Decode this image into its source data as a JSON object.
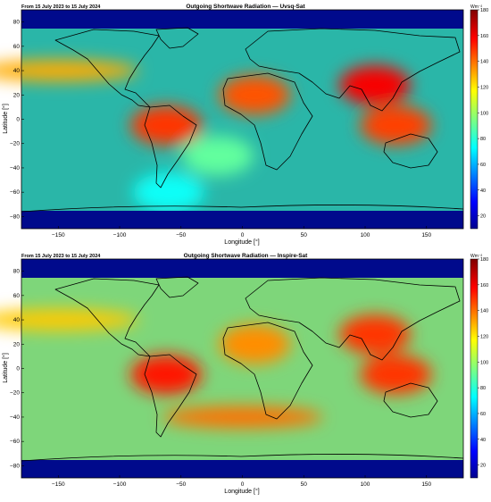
{
  "panels": [
    {
      "date_range": "From 15 July 2023 to 15 July 2024",
      "title": "Outgoing Shortwave Radiation — Uvsq-Sat",
      "xlabel": "Longitude [°]",
      "ylabel": "Latitude [°]",
      "x_ticks": [
        "−150",
        "−100",
        "−50",
        "0",
        "50",
        "100",
        "150"
      ],
      "y_ticks": [
        "80",
        "60",
        "40",
        "20",
        "0",
        "−20",
        "−40",
        "−60",
        "−80"
      ],
      "colorbar_unit": "Wm⁻²",
      "colorbar_ticks": [
        "180",
        "160",
        "140",
        "120",
        "100",
        "80",
        "60",
        "40",
        "20"
      ]
    },
    {
      "date_range": "From 15 July 2023 to 15 July 2024",
      "title": "Outgoing Shortwave Radiation — Inspire-Sat",
      "xlabel": "Longitude [°]",
      "ylabel": "Latitude [°]",
      "x_ticks": [
        "−150",
        "−100",
        "−50",
        "0",
        "50",
        "100",
        "150"
      ],
      "y_ticks": [
        "80",
        "60",
        "40",
        "20",
        "0",
        "−20",
        "−40",
        "−60",
        "−80"
      ],
      "colorbar_unit": "Wm⁻²",
      "colorbar_ticks": [
        "180",
        "160",
        "140",
        "120",
        "100",
        "80",
        "60",
        "40",
        "20"
      ]
    }
  ],
  "chart_data": [
    {
      "type": "heatmap",
      "projection": "equirectangular",
      "x_range": [
        -180,
        180
      ],
      "y_range": [
        -90,
        90
      ],
      "colorscale": "jet",
      "color_range": [
        10,
        180
      ],
      "features": [
        {
          "name": "arctic-low",
          "lon": 0,
          "lat": 85,
          "value": 15
        },
        {
          "name": "antarctic-low",
          "lon": 0,
          "lat": -85,
          "value": 15
        },
        {
          "name": "sahara-high",
          "lon": 10,
          "lat": 20,
          "value": 145
        },
        {
          "name": "east-asia-high",
          "lon": 108,
          "lat": 28,
          "value": 160
        },
        {
          "name": "amazon-high",
          "lon": -62,
          "lat": -5,
          "value": 150
        },
        {
          "name": "maritime-continent-high",
          "lon": 125,
          "lat": -5,
          "value": 148
        },
        {
          "name": "north-pacific-band",
          "lon": -150,
          "lat": 40,
          "value": 130
        },
        {
          "name": "south-atlantic-cyan",
          "lon": -20,
          "lat": -30,
          "value": 90
        },
        {
          "name": "southern-ocean-blue",
          "lon": -60,
          "lat": -60,
          "value": 75
        }
      ]
    },
    {
      "type": "heatmap",
      "projection": "equirectangular",
      "x_range": [
        -180,
        180
      ],
      "y_range": [
        -90,
        90
      ],
      "colorscale": "jet",
      "color_range": [
        10,
        180
      ],
      "features": [
        {
          "name": "arctic-low",
          "lon": 0,
          "lat": 85,
          "value": 15
        },
        {
          "name": "antarctic-low",
          "lon": 0,
          "lat": -85,
          "value": 15
        },
        {
          "name": "sahara-high",
          "lon": 10,
          "lat": 20,
          "value": 135
        },
        {
          "name": "east-asia-high",
          "lon": 108,
          "lat": 28,
          "value": 150
        },
        {
          "name": "amazon-high",
          "lon": -62,
          "lat": -5,
          "value": 155
        },
        {
          "name": "maritime-continent-high",
          "lon": 125,
          "lat": -5,
          "value": 150
        },
        {
          "name": "southern-midlat-band",
          "lon": 0,
          "lat": -40,
          "value": 140
        },
        {
          "name": "north-pacific-band",
          "lon": -150,
          "lat": 40,
          "value": 125
        }
      ]
    }
  ]
}
